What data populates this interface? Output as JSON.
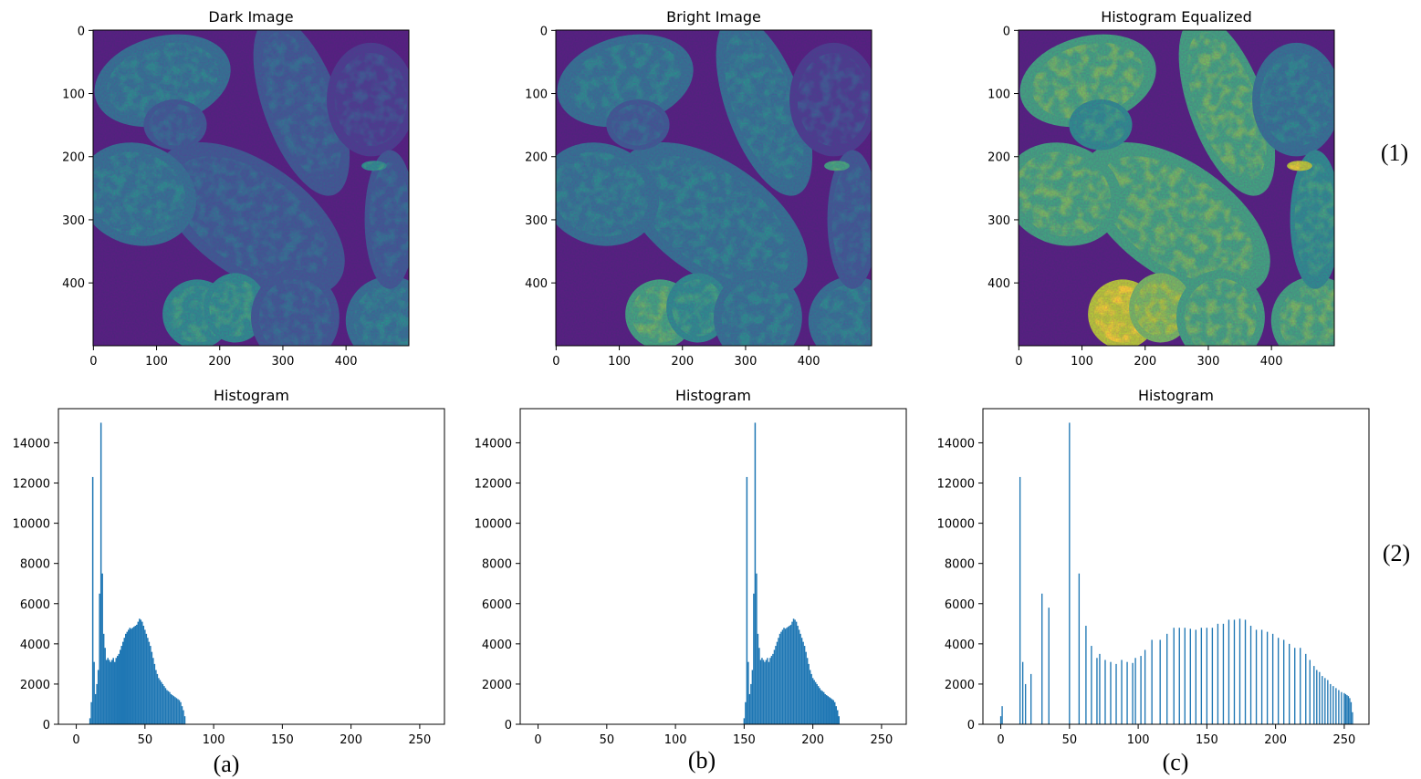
{
  "colors": {
    "bar": "#1f77b4",
    "axis": "#000000",
    "viridis": [
      "#440154",
      "#482878",
      "#3e4989",
      "#31688e",
      "#26828e",
      "#1f9e89",
      "#35b779",
      "#6ece58",
      "#b5de2b",
      "#fde725"
    ]
  },
  "images": [
    {
      "title": "Dark Image",
      "label": "(1)",
      "xticks": [
        "0",
        "100",
        "200",
        "300",
        "400"
      ],
      "yticks": [
        "0",
        "100",
        "200",
        "300",
        "400"
      ],
      "brightness": 0.72
    },
    {
      "title": "Bright Image",
      "xticks": [
        "0",
        "100",
        "200",
        "300",
        "400"
      ],
      "yticks": [
        "0",
        "100",
        "200",
        "300",
        "400"
      ],
      "brightness": 0.76
    },
    {
      "title": "Histogram Equalized",
      "xticks": [
        "0",
        "100",
        "200",
        "300",
        "400"
      ],
      "yticks": [
        "0",
        "100",
        "200",
        "300",
        "400"
      ],
      "brightness": 0.92
    }
  ],
  "row_labels": [
    "(1)",
    "(2)"
  ],
  "column_labels": [
    "(a)",
    "(b)",
    "(c)"
  ],
  "chart_data": [
    {
      "type": "bar",
      "title": "Histogram",
      "xlim": [
        -13,
        268
      ],
      "ylim": [
        0,
        15700
      ],
      "xticks": [
        0,
        50,
        100,
        150,
        200,
        250
      ],
      "yticks": [
        0,
        2000,
        4000,
        6000,
        8000,
        10000,
        12000,
        14000
      ],
      "points": [
        [
          10,
          300
        ],
        [
          11,
          1100
        ],
        [
          12,
          12300
        ],
        [
          13,
          3100
        ],
        [
          14,
          1500
        ],
        [
          15,
          2000
        ],
        [
          16,
          2700
        ],
        [
          17,
          6500
        ],
        [
          18,
          15000
        ],
        [
          19,
          7500
        ],
        [
          20,
          4500
        ],
        [
          21,
          3800
        ],
        [
          22,
          3200
        ],
        [
          23,
          3300
        ],
        [
          24,
          3200
        ],
        [
          25,
          3100
        ],
        [
          26,
          3200
        ],
        [
          27,
          3300
        ],
        [
          28,
          3100
        ],
        [
          29,
          3300
        ],
        [
          30,
          3400
        ],
        [
          31,
          3500
        ],
        [
          32,
          3700
        ],
        [
          33,
          3900
        ],
        [
          34,
          4100
        ],
        [
          35,
          4300
        ],
        [
          36,
          4500
        ],
        [
          37,
          4600
        ],
        [
          38,
          4700
        ],
        [
          39,
          4800
        ],
        [
          40,
          4750
        ],
        [
          41,
          4800
        ],
        [
          42,
          4850
        ],
        [
          43,
          4900
        ],
        [
          44,
          4950
        ],
        [
          45,
          5100
        ],
        [
          46,
          5250
        ],
        [
          47,
          5200
        ],
        [
          48,
          5100
        ],
        [
          49,
          4900
        ],
        [
          50,
          4700
        ],
        [
          51,
          4500
        ],
        [
          52,
          4300
        ],
        [
          53,
          4100
        ],
        [
          54,
          3900
        ],
        [
          55,
          3600
        ],
        [
          56,
          3300
        ],
        [
          57,
          3000
        ],
        [
          58,
          2700
        ],
        [
          59,
          2500
        ],
        [
          60,
          2300
        ],
        [
          61,
          2200
        ],
        [
          62,
          2100
        ],
        [
          63,
          2000
        ],
        [
          64,
          1900
        ],
        [
          65,
          1800
        ],
        [
          66,
          1700
        ],
        [
          67,
          1650
        ],
        [
          68,
          1600
        ],
        [
          69,
          1500
        ],
        [
          70,
          1450
        ],
        [
          71,
          1400
        ],
        [
          72,
          1350
        ],
        [
          73,
          1300
        ],
        [
          74,
          1250
        ],
        [
          75,
          1200
        ],
        [
          76,
          1100
        ],
        [
          77,
          900
        ],
        [
          78,
          700
        ],
        [
          79,
          400
        ]
      ]
    },
    {
      "type": "bar",
      "title": "Histogram",
      "xlim": [
        -13,
        268
      ],
      "ylim": [
        0,
        15700
      ],
      "xticks": [
        0,
        50,
        100,
        150,
        200,
        250
      ],
      "yticks": [
        0,
        2000,
        4000,
        6000,
        8000,
        10000,
        12000,
        14000
      ],
      "points": [
        [
          150,
          300
        ],
        [
          151,
          1100
        ],
        [
          152,
          12300
        ],
        [
          153,
          3100
        ],
        [
          154,
          1500
        ],
        [
          155,
          2000
        ],
        [
          156,
          2700
        ],
        [
          157,
          6500
        ],
        [
          158,
          15000
        ],
        [
          159,
          7500
        ],
        [
          160,
          4500
        ],
        [
          161,
          3800
        ],
        [
          162,
          3200
        ],
        [
          163,
          3300
        ],
        [
          164,
          3200
        ],
        [
          165,
          3100
        ],
        [
          166,
          3200
        ],
        [
          167,
          3300
        ],
        [
          168,
          3100
        ],
        [
          169,
          3300
        ],
        [
          170,
          3400
        ],
        [
          171,
          3500
        ],
        [
          172,
          3700
        ],
        [
          173,
          3900
        ],
        [
          174,
          4100
        ],
        [
          175,
          4300
        ],
        [
          176,
          4500
        ],
        [
          177,
          4600
        ],
        [
          178,
          4700
        ],
        [
          179,
          4800
        ],
        [
          180,
          4750
        ],
        [
          181,
          4800
        ],
        [
          182,
          4850
        ],
        [
          183,
          4900
        ],
        [
          184,
          4950
        ],
        [
          185,
          5100
        ],
        [
          186,
          5250
        ],
        [
          187,
          5200
        ],
        [
          188,
          5100
        ],
        [
          189,
          4900
        ],
        [
          190,
          4700
        ],
        [
          191,
          4500
        ],
        [
          192,
          4300
        ],
        [
          193,
          4100
        ],
        [
          194,
          3900
        ],
        [
          195,
          3600
        ],
        [
          196,
          3300
        ],
        [
          197,
          3000
        ],
        [
          198,
          2700
        ],
        [
          199,
          2500
        ],
        [
          200,
          2300
        ],
        [
          201,
          2200
        ],
        [
          202,
          2100
        ],
        [
          203,
          2000
        ],
        [
          204,
          1900
        ],
        [
          205,
          1800
        ],
        [
          206,
          1700
        ],
        [
          207,
          1650
        ],
        [
          208,
          1600
        ],
        [
          209,
          1500
        ],
        [
          210,
          1450
        ],
        [
          211,
          1400
        ],
        [
          212,
          1350
        ],
        [
          213,
          1300
        ],
        [
          214,
          1250
        ],
        [
          215,
          1200
        ],
        [
          216,
          1100
        ],
        [
          217,
          900
        ],
        [
          218,
          700
        ],
        [
          219,
          400
        ]
      ]
    },
    {
      "type": "bar",
      "title": "Histogram",
      "xlim": [
        -13,
        268
      ],
      "ylim": [
        0,
        15700
      ],
      "xticks": [
        0,
        50,
        100,
        150,
        200,
        250
      ],
      "yticks": [
        0,
        2000,
        4000,
        6000,
        8000,
        10000,
        12000,
        14000
      ],
      "points": [
        [
          0,
          400
        ],
        [
          1,
          900
        ],
        [
          14,
          12300
        ],
        [
          16,
          3100
        ],
        [
          18,
          2000
        ],
        [
          22,
          2500
        ],
        [
          30,
          6500
        ],
        [
          35,
          5800
        ],
        [
          50,
          15000
        ],
        [
          57,
          7500
        ],
        [
          62,
          4900
        ],
        [
          66,
          3900
        ],
        [
          70,
          3300
        ],
        [
          72,
          3500
        ],
        [
          76,
          3200
        ],
        [
          80,
          3100
        ],
        [
          84,
          3000
        ],
        [
          88,
          3200
        ],
        [
          92,
          3100
        ],
        [
          96,
          3050
        ],
        [
          98,
          3300
        ],
        [
          102,
          3400
        ],
        [
          105,
          3700
        ],
        [
          110,
          4200
        ],
        [
          116,
          4200
        ],
        [
          121,
          4500
        ],
        [
          126,
          4800
        ],
        [
          130,
          4800
        ],
        [
          134,
          4800
        ],
        [
          138,
          4750
        ],
        [
          142,
          4700
        ],
        [
          146,
          4800
        ],
        [
          150,
          4800
        ],
        [
          154,
          4800
        ],
        [
          158,
          5000
        ],
        [
          162,
          5000
        ],
        [
          166,
          5200
        ],
        [
          170,
          5200
        ],
        [
          174,
          5250
        ],
        [
          178,
          5200
        ],
        [
          182,
          4900
        ],
        [
          186,
          4700
        ],
        [
          190,
          4700
        ],
        [
          194,
          4600
        ],
        [
          198,
          4500
        ],
        [
          202,
          4300
        ],
        [
          206,
          4200
        ],
        [
          210,
          4000
        ],
        [
          214,
          3800
        ],
        [
          218,
          3800
        ],
        [
          222,
          3500
        ],
        [
          225,
          3200
        ],
        [
          228,
          2900
        ],
        [
          230,
          2700
        ],
        [
          232,
          2600
        ],
        [
          234,
          2400
        ],
        [
          236,
          2300
        ],
        [
          238,
          2200
        ],
        [
          240,
          2000
        ],
        [
          242,
          1900
        ],
        [
          244,
          1800
        ],
        [
          246,
          1700
        ],
        [
          248,
          1600
        ],
        [
          250,
          1550
        ],
        [
          251,
          1500
        ],
        [
          252,
          1450
        ],
        [
          253,
          1400
        ],
        [
          254,
          1300
        ],
        [
          255,
          1100
        ],
        [
          256,
          600
        ]
      ]
    }
  ]
}
